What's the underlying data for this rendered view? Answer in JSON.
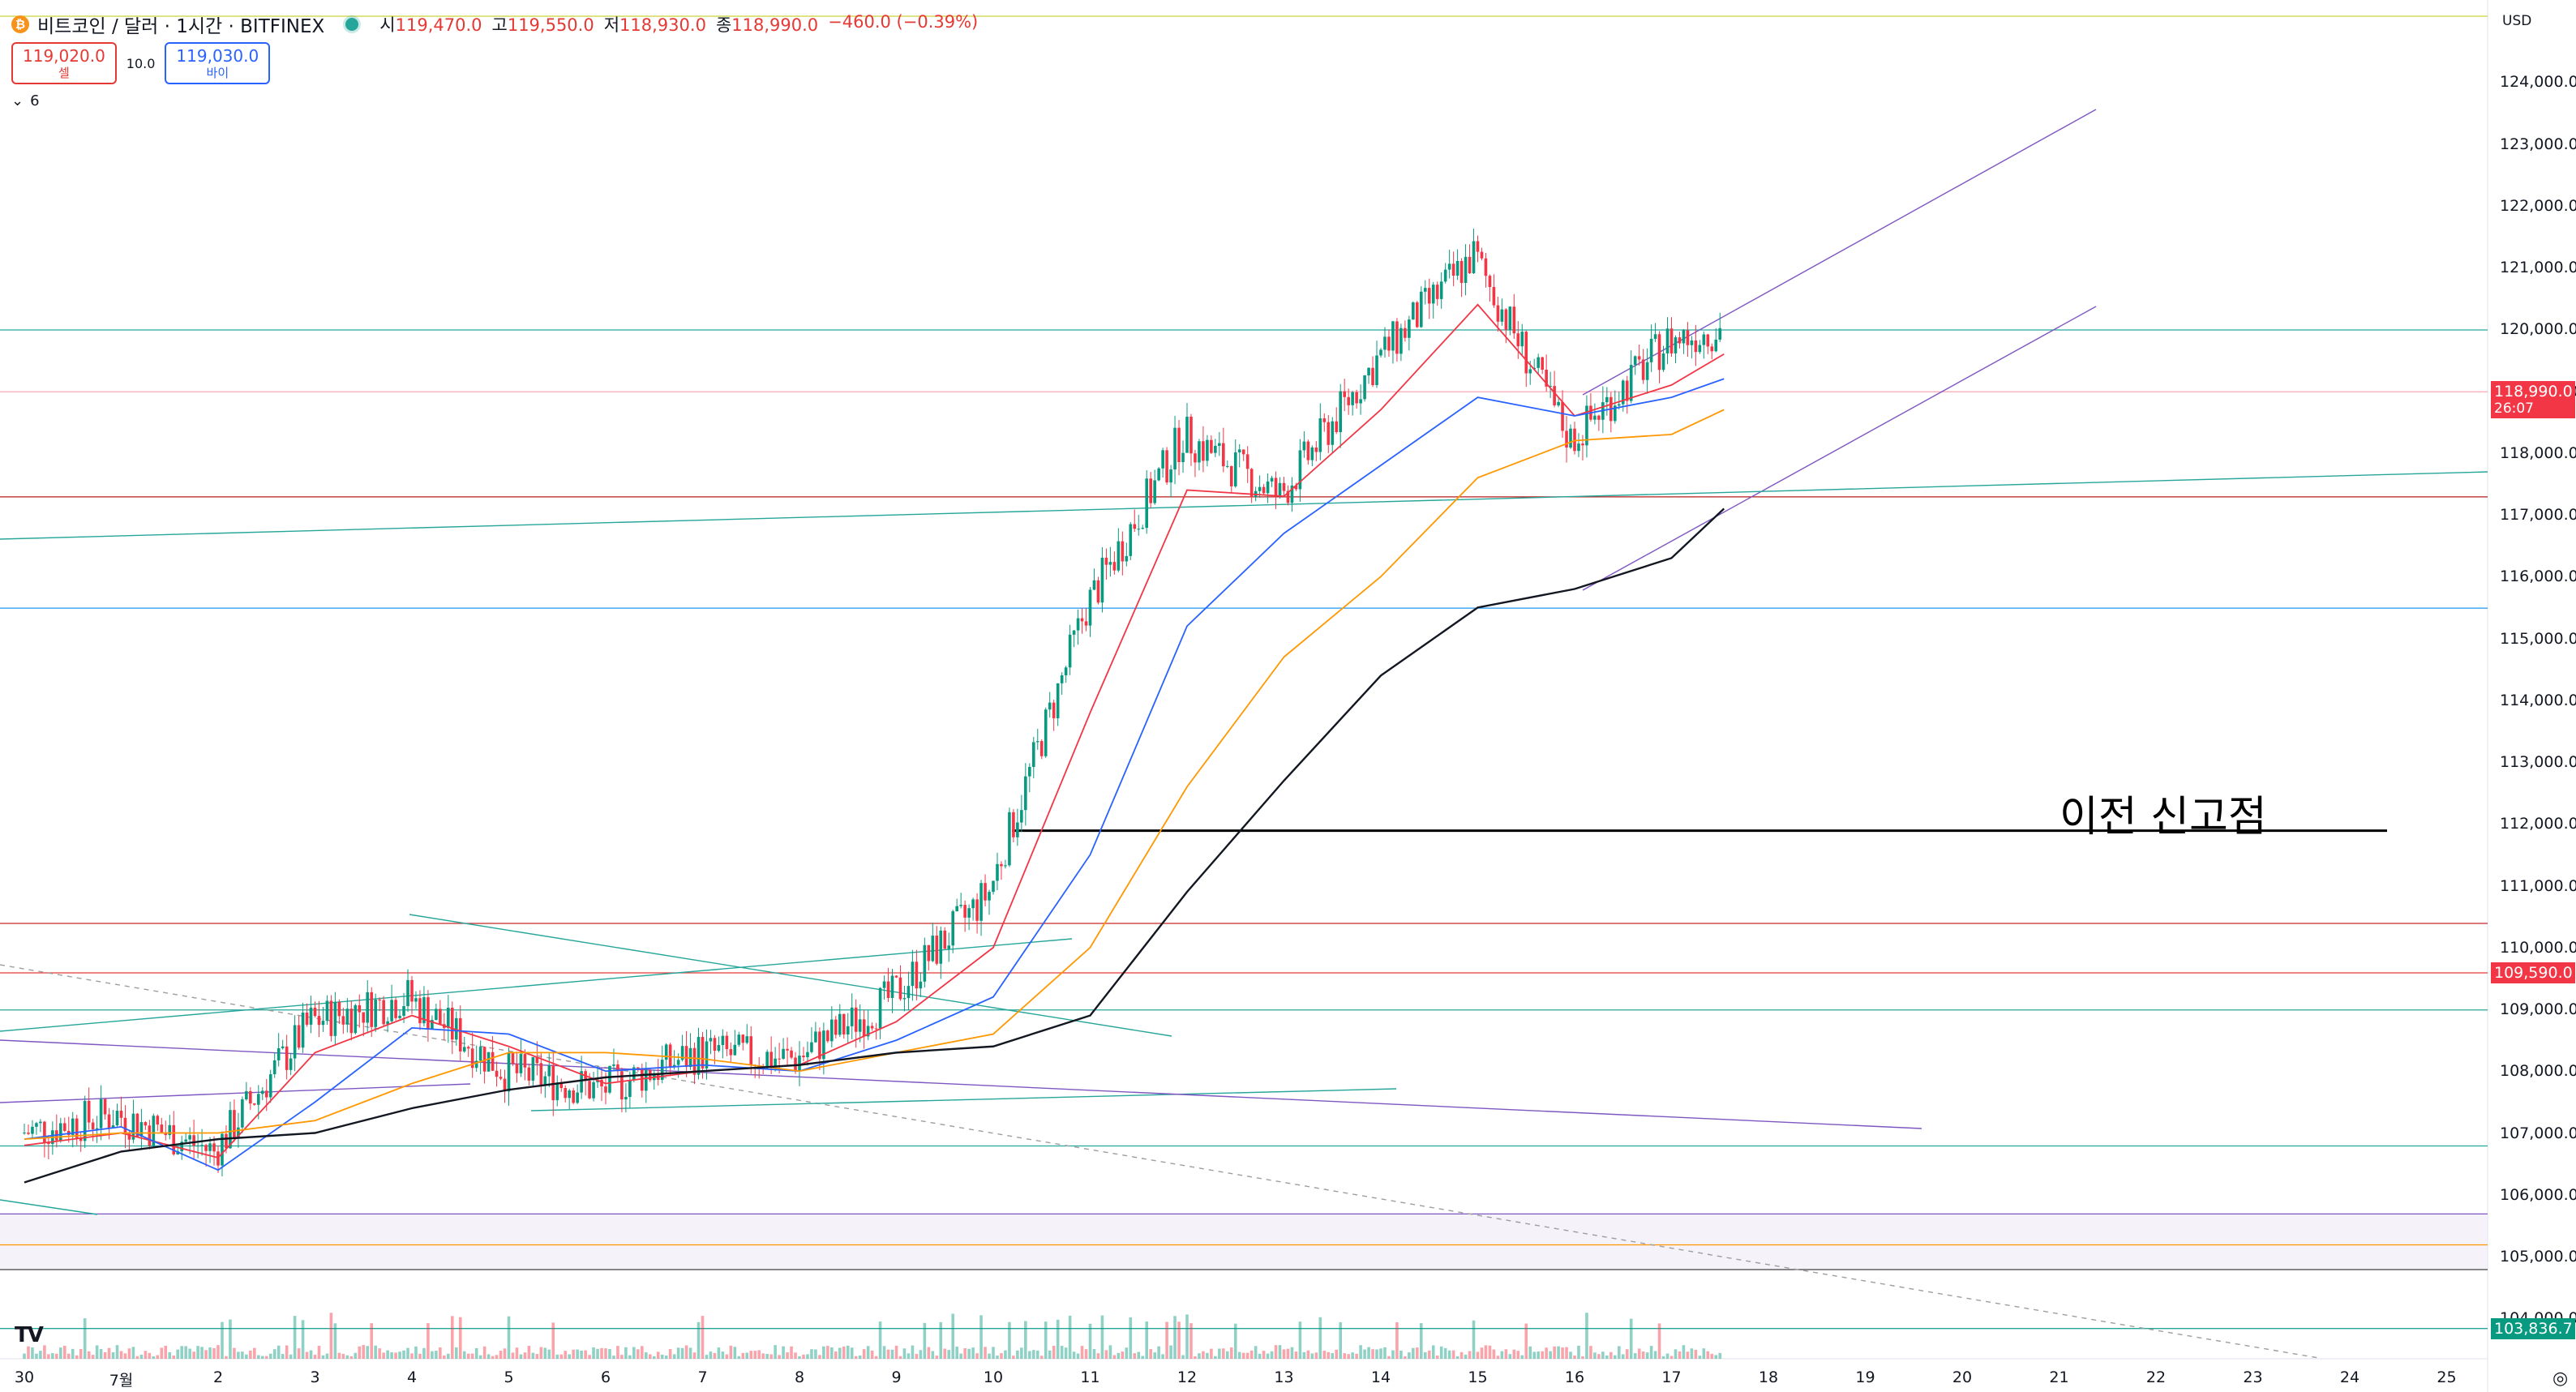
{
  "header": {
    "coin_icon": "bitcoin-icon",
    "coin_glyph": "₿",
    "title": "비트코인 / 달러 · 1시간 · BITFINEX",
    "ohlc": {
      "open_label": "시",
      "open": "119,470.0",
      "high_label": "고",
      "high": "119,550.0",
      "low_label": "저",
      "low": "118,930.0",
      "close_label": "종",
      "close": "118,990.0",
      "change": "−460.0 (−0.39%)"
    }
  },
  "trade": {
    "sell_price": "119,020.0",
    "sell_label": "셀",
    "spread": "10.0",
    "buy_price": "119,030.0",
    "buy_label": "바이"
  },
  "indicators": {
    "toggle_icon": "chevron-down-icon",
    "glyph": "⌄",
    "count": "6"
  },
  "annotation": "이전 신고점",
  "axis": {
    "currency": "USD",
    "y_ticks": [
      "124,000.0",
      "123,000.0",
      "122,000.0",
      "121,000.0",
      "120,000.0",
      "119,000.0",
      "118,000.0",
      "117,000.0",
      "116,000.0",
      "115,000.0",
      "114,000.0",
      "113,000.0",
      "112,000.0",
      "111,000.0",
      "110,000.0",
      "109,000.0",
      "108,000.0",
      "107,000.0",
      "106,000.0",
      "105,000.0",
      "104,000.0"
    ],
    "x_ticks": [
      "30",
      "7월",
      "2",
      "3",
      "4",
      "5",
      "6",
      "7",
      "8",
      "9",
      "10",
      "11",
      "12",
      "13",
      "14",
      "15",
      "16",
      "17",
      "18",
      "19",
      "20",
      "21",
      "22",
      "23",
      "24",
      "25"
    ],
    "price_labels": [
      {
        "value": "118,990.0",
        "sub": "26:07",
        "color": "#f23645"
      },
      {
        "value": "109,590.0",
        "sub": "",
        "color": "#f23645"
      },
      {
        "value": "103,836.7",
        "sub": "",
        "color": "#089981"
      }
    ]
  },
  "footer": {
    "logo": "TV",
    "settings_icon": "settings-icon",
    "settings_glyph": "◎"
  },
  "colors": {
    "up": "#089981",
    "down": "#f23645",
    "ema_fast": "#f23645",
    "ema_mid": "#2962ff",
    "ema_slow": "#ff9800",
    "ema_long": "#131722"
  },
  "chart_data": {
    "type": "line",
    "symbol": "BTC/USD",
    "interval": "1h",
    "ylim": [
      103800,
      124400
    ],
    "x": [
      "30",
      "7월",
      "2",
      "3",
      "4",
      "5",
      "6",
      "7",
      "8",
      "9",
      "10",
      "11",
      "12",
      "13",
      "14",
      "15",
      "16",
      "17",
      "18"
    ],
    "series": [
      {
        "values": [
          107000,
          107300,
          106700,
          108800,
          109200,
          108000,
          107700,
          108300,
          108200,
          109200,
          110900,
          115500,
          118300,
          117300,
          119500,
          121200,
          118200,
          119800,
          120200
        ]
      },
      {
        "values": [
          106800,
          107000,
          106600,
          108300,
          108900,
          108400,
          107800,
          108000,
          108100,
          108800,
          110000,
          113800,
          117400,
          117300,
          118700,
          120400,
          118600,
          119100,
          119600
        ]
      },
      {
        "values": [
          106900,
          107100,
          106400,
          107500,
          108700,
          108600,
          108000,
          108100,
          108000,
          108500,
          109200,
          111500,
          115200,
          116700,
          117800,
          118900,
          118600,
          118900,
          119200
        ]
      },
      {
        "values": [
          106900,
          107000,
          107000,
          107200,
          107800,
          108300,
          108300,
          108200,
          108000,
          108300,
          108600,
          110000,
          112600,
          114700,
          116000,
          117600,
          118200,
          118300,
          118700
        ]
      },
      {
        "values": [
          106200,
          106700,
          106900,
          107000,
          107400,
          107700,
          107900,
          108000,
          108100,
          108300,
          108400,
          108900,
          110900,
          112700,
          114400,
          115500,
          115800,
          116300,
          117100
        ]
      }
    ],
    "horizontal_levels": [
      119990,
      118990,
      117290,
      115490,
      111890,
      110390,
      109590,
      108990,
      106790,
      105690,
      105190,
      104790,
      103836.7
    ],
    "last_price": 118990,
    "annotations": [
      {
        "text": "이전 신고점",
        "level": 111890
      }
    ],
    "grid": false,
    "legend": "none"
  }
}
